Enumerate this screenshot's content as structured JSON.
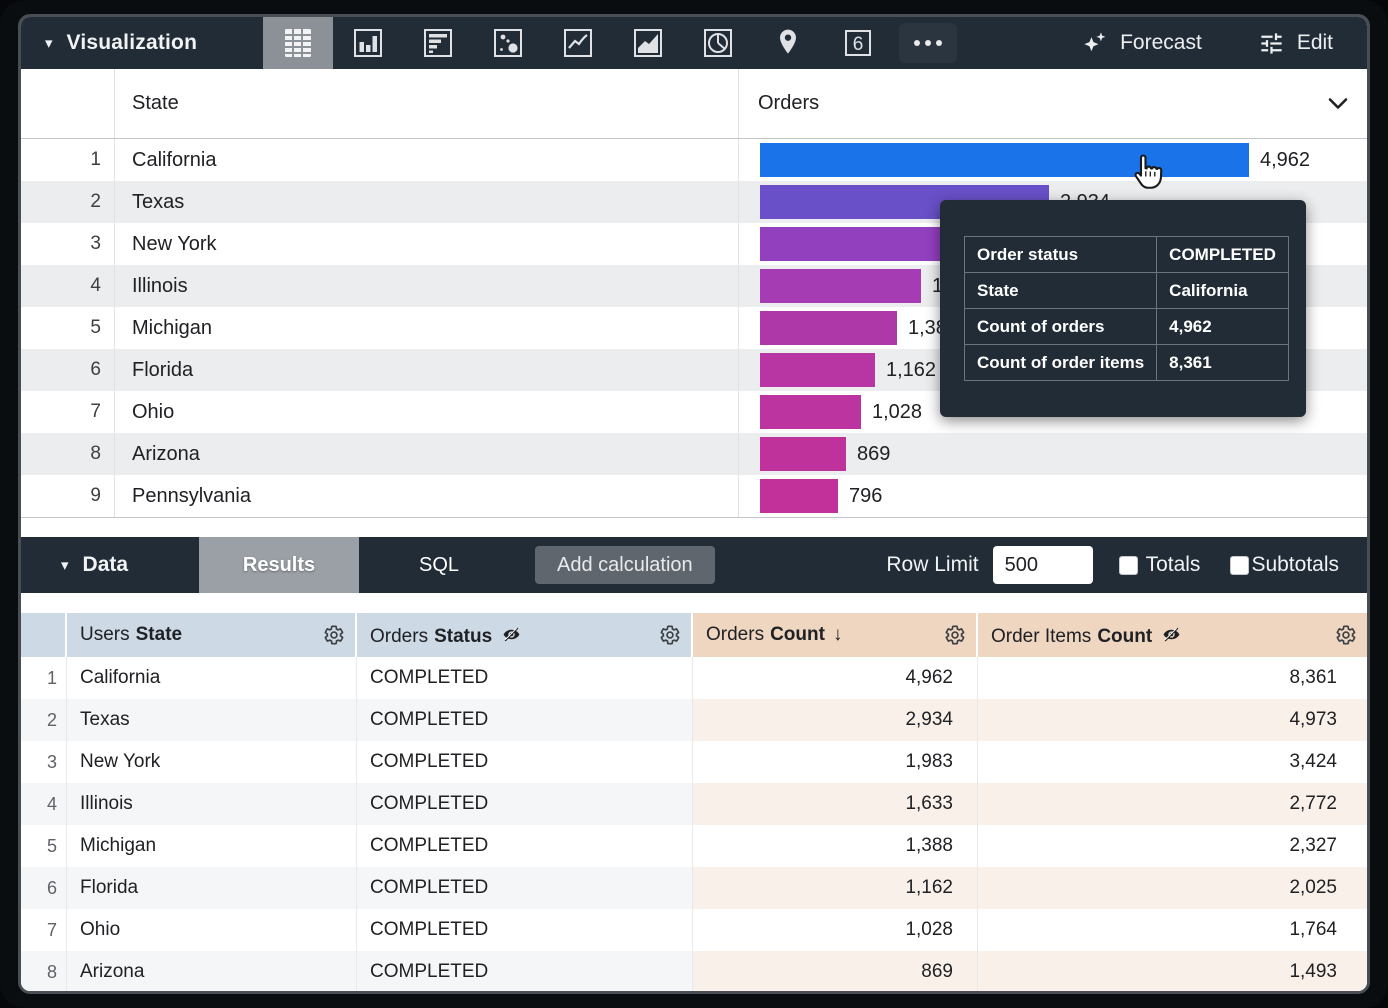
{
  "toolbar": {
    "visualization_label": "Visualization",
    "selected_viz_type": "table",
    "viz_type_icons": [
      "table",
      "column-chart",
      "bar-chart",
      "scatter-chart",
      "line-chart",
      "area-chart",
      "pie-chart",
      "map-pin",
      "single-value",
      "more-ellipsis"
    ],
    "single_value_glyph": "6",
    "forecast_label": "Forecast",
    "edit_label": "Edit"
  },
  "viz_table": {
    "state_header": "State",
    "orders_header": "Orders"
  },
  "chart_data": {
    "type": "bar",
    "orientation": "horizontal",
    "title": "",
    "categories": [
      "California",
      "Texas",
      "New York",
      "Illinois",
      "Michigan",
      "Florida",
      "Ohio",
      "Arizona",
      "Pennsylvania"
    ],
    "series": [
      {
        "name": "Count of orders",
        "values": [
          4962,
          2934,
          1983,
          1633,
          1388,
          1162,
          1028,
          869,
          796
        ],
        "labels": [
          "4,962",
          "2,934",
          "1,983",
          "1,633",
          "1,388",
          "1,162",
          "1,028",
          "869",
          "796"
        ]
      }
    ],
    "bar_colors": [
      "#1a73e8",
      "#6950c8",
      "#9340bf",
      "#a53cb3",
      "#af38a9",
      "#b836a3",
      "#bc349f",
      "#c0329b",
      "#c23199"
    ],
    "xlim": [
      0,
      4962
    ],
    "value_labels_shown": true,
    "grid": false,
    "legend": "none"
  },
  "tooltip": {
    "rows": [
      {
        "label": "Order status",
        "value": "COMPLETED"
      },
      {
        "label": "State",
        "value": "California"
      },
      {
        "label": "Count of orders",
        "value": "4,962"
      },
      {
        "label": "Count of order items",
        "value": "8,361"
      }
    ]
  },
  "data_bar": {
    "data_label": "Data",
    "results_tab": "Results",
    "sql_tab": "SQL",
    "selected_tab": "Results",
    "add_calculation_label": "Add calculation",
    "row_limit_label": "Row Limit",
    "row_limit_value": "500",
    "totals_label": "Totals",
    "subtotals_label": "Subtotals",
    "totals_checked": false,
    "subtotals_checked": false
  },
  "data_table": {
    "headers": [
      {
        "group": "Users",
        "field": "State",
        "hidden": false,
        "sort": ""
      },
      {
        "group": "Orders",
        "field": "Status",
        "hidden": true,
        "sort": ""
      },
      {
        "group": "Orders",
        "field": "Count",
        "hidden": false,
        "sort": "desc"
      },
      {
        "group": "Order Items",
        "field": "Count",
        "hidden": true,
        "sort": ""
      }
    ],
    "sort_arrow": "↓",
    "rows": [
      {
        "rank": "1",
        "state": "California",
        "status": "COMPLETED",
        "orders_count": "4,962",
        "order_items_count": "8,361"
      },
      {
        "rank": "2",
        "state": "Texas",
        "status": "COMPLETED",
        "orders_count": "2,934",
        "order_items_count": "4,973"
      },
      {
        "rank": "3",
        "state": "New York",
        "status": "COMPLETED",
        "orders_count": "1,983",
        "order_items_count": "3,424"
      },
      {
        "rank": "4",
        "state": "Illinois",
        "status": "COMPLETED",
        "orders_count": "1,633",
        "order_items_count": "2,772"
      },
      {
        "rank": "5",
        "state": "Michigan",
        "status": "COMPLETED",
        "orders_count": "1,388",
        "order_items_count": "2,327"
      },
      {
        "rank": "6",
        "state": "Florida",
        "status": "COMPLETED",
        "orders_count": "1,162",
        "order_items_count": "2,025"
      },
      {
        "rank": "7",
        "state": "Ohio",
        "status": "COMPLETED",
        "orders_count": "1,028",
        "order_items_count": "1,764"
      },
      {
        "rank": "8",
        "state": "Arizona",
        "status": "COMPLETED",
        "orders_count": "869",
        "order_items_count": "1,493"
      }
    ]
  }
}
